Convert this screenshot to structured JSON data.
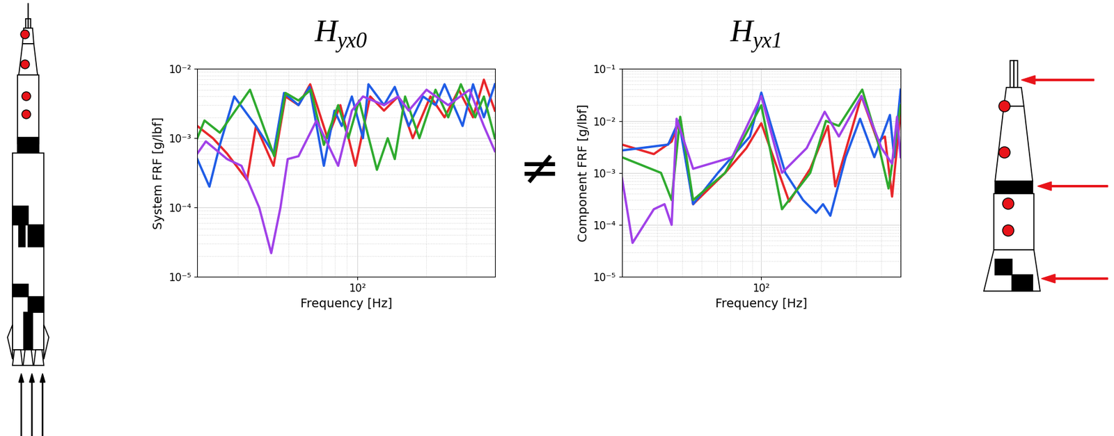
{
  "chart_data": [
    {
      "type": "line",
      "title": "Hyx0",
      "x_label": "Frequency [Hz]",
      "y_label": "System FRF [g/lbf]",
      "log": true,
      "grid": true,
      "xlim": [
        20,
        400
      ],
      "ylim": [
        1e-05,
        0.01
      ],
      "xticks": [
        {
          "value": 100,
          "label": "10²"
        }
      ],
      "yticks": [
        {
          "value": 1e-05,
          "label": "10⁻⁵"
        },
        {
          "value": 0.0001,
          "label": "10⁻⁴"
        },
        {
          "value": 0.001,
          "label": "10⁻³"
        },
        {
          "value": 0.01,
          "label": "10⁻²"
        }
      ],
      "series": [
        {
          "color": "#e8262a",
          "x": [
            20,
            23.4,
            27.0,
            33.0,
            36.1,
            43.1,
            48.6,
            55.4,
            62.3,
            74.2,
            84.4,
            98.3,
            114,
            131,
            151,
            175,
            209,
            241,
            278,
            321,
            358,
            400
          ],
          "values": [
            0.0015,
            0.001,
            0.0006,
            0.00025,
            0.0015,
            0.0004,
            0.004,
            0.003,
            0.006,
            0.001,
            0.003,
            0.0004,
            0.004,
            0.0025,
            0.004,
            0.001,
            0.004,
            0.002,
            0.005,
            0.002,
            0.007,
            0.0025
          ]
        },
        {
          "color": "#1f5ce6",
          "x": [
            20,
            22.6,
            25.1,
            29.0,
            36.1,
            43.1,
            47.9,
            55.4,
            61.9,
            71.5,
            79.6,
            85.6,
            94.8,
            106,
            112,
            131,
            146,
            168,
            194,
            220,
            241,
            289,
            321,
            358,
            400
          ],
          "values": [
            0.0005,
            0.0002,
            0.0008,
            0.004,
            0.0015,
            0.0006,
            0.0045,
            0.003,
            0.0055,
            0.0004,
            0.0025,
            0.0015,
            0.004,
            0.001,
            0.006,
            0.003,
            0.0055,
            0.0015,
            0.004,
            0.003,
            0.006,
            0.0015,
            0.006,
            0.002,
            0.006
          ]
        },
        {
          "color": "#2eaa2e",
          "x": [
            20,
            21.5,
            25.1,
            34.0,
            43.4,
            48.6,
            55.4,
            62.7,
            71.5,
            82.6,
            91.5,
            102,
            122,
            136,
            146,
            162,
            187,
            220,
            250,
            284,
            328,
            358,
            400
          ],
          "values": [
            0.001,
            0.0018,
            0.0012,
            0.005,
            0.00055,
            0.0045,
            0.0035,
            0.005,
            0.0008,
            0.003,
            0.001,
            0.0035,
            0.00035,
            0.001,
            0.0005,
            0.004,
            0.001,
            0.005,
            0.002,
            0.006,
            0.002,
            0.004,
            0.001
          ]
        },
        {
          "color": "#a040e8",
          "x": [
            20,
            21.8,
            27.0,
            31.2,
            37.3,
            42.1,
            46.2,
            49.7,
            55.4,
            66.4,
            82.6,
            94.8,
            106,
            131,
            151,
            168,
            201,
            250,
            310,
            358,
            400
          ],
          "values": [
            0.0006,
            0.0009,
            0.0005,
            0.0004,
            0.0001,
            2.2e-05,
            0.0001,
            0.0005,
            0.00055,
            0.0018,
            0.0004,
            0.0025,
            0.004,
            0.003,
            0.004,
            0.0025,
            0.005,
            0.003,
            0.005,
            0.0015,
            0.00065
          ]
        }
      ]
    },
    {
      "type": "line",
      "title": "Hyx1",
      "x_label": "Frequency [Hz]",
      "y_label": "Component FRF [g/lbf]",
      "log": true,
      "grid": true,
      "xlim": [
        20,
        500
      ],
      "ylim": [
        1e-05,
        0.1
      ],
      "xticks": [
        {
          "value": 100,
          "label": "10²"
        }
      ],
      "yticks": [
        {
          "value": 1e-05,
          "label": "10⁻⁵"
        },
        {
          "value": 0.0001,
          "label": "10⁻⁴"
        },
        {
          "value": 0.001,
          "label": "10⁻³"
        },
        {
          "value": 0.01,
          "label": "10⁻²"
        },
        {
          "value": 0.1,
          "label": "10⁻¹"
        }
      ],
      "series": [
        {
          "color": "#e8262a",
          "x": [
            20,
            28.9,
            35.5,
            39.2,
            45.5,
            65.8,
            84.2,
            100,
            138,
            176,
            216,
            235,
            318,
            384,
            417,
            453,
            500
          ],
          "values": [
            0.0035,
            0.0023,
            0.004,
            0.011,
            0.00025,
            0.001,
            0.003,
            0.009,
            0.00028,
            0.0012,
            0.008,
            0.00055,
            0.03,
            0.004,
            0.005,
            0.00035,
            0.015
          ]
        },
        {
          "color": "#1f5ce6",
          "x": [
            20,
            34.1,
            38.6,
            45.5,
            60.6,
            87.7,
            100,
            132,
            162,
            188,
            204,
            222,
            265,
            313,
            369,
            442,
            464,
            500
          ],
          "values": [
            0.0027,
            0.0035,
            0.01,
            0.00025,
            0.001,
            0.005,
            0.035,
            0.001,
            0.0003,
            0.00017,
            0.00025,
            0.00015,
            0.002,
            0.011,
            0.002,
            0.013,
            0.002,
            0.04
          ]
        },
        {
          "color": "#2eaa2e",
          "x": [
            20,
            31.4,
            35.5,
            39.2,
            45.5,
            65.8,
            100,
            127,
            176,
            211,
            245,
            321,
            384,
            435,
            500
          ],
          "values": [
            0.002,
            0.001,
            0.0003,
            0.012,
            0.0003,
            0.001,
            0.02,
            0.0002,
            0.001,
            0.01,
            0.008,
            0.04,
            0.004,
            0.0005,
            0.02
          ]
        },
        {
          "color": "#a040e8",
          "x": [
            20,
            22.6,
            28.9,
            32.7,
            35.5,
            37.6,
            45.5,
            71.4,
            100,
            127,
            169,
            208,
            245,
            318,
            401,
            453,
            480,
            500
          ],
          "values": [
            0.0008,
            4.5e-05,
            0.0002,
            0.00025,
            0.0001,
            0.011,
            0.0012,
            0.002,
            0.03,
            0.001,
            0.003,
            0.015,
            0.005,
            0.03,
            0.003,
            0.0015,
            0.012,
            0.002
          ]
        }
      ]
    }
  ],
  "annotations": [
    {
      "text": "≠"
    }
  ]
}
